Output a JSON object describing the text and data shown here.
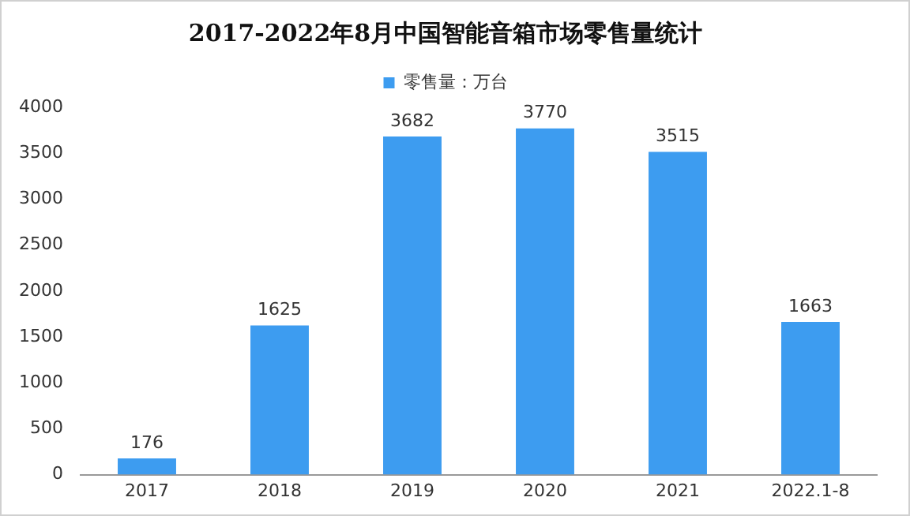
{
  "chart_data": {
    "type": "bar",
    "title": "2017-2022年8月中国智能音箱市场零售量统计",
    "categories": [
      "2017",
      "2018",
      "2019",
      "2020",
      "2021",
      "2022.1-8"
    ],
    "series": [
      {
        "name": "零售量：万台",
        "color": "#3d9cf0",
        "values": [
          176,
          1625,
          3682,
          3770,
          3515,
          1663
        ]
      }
    ],
    "ylim": [
      0,
      4000
    ],
    "yticks": [
      0,
      500,
      1000,
      1500,
      2000,
      2500,
      3000,
      3500,
      4000
    ],
    "grid": false,
    "legend": "top",
    "data_labels": true
  }
}
